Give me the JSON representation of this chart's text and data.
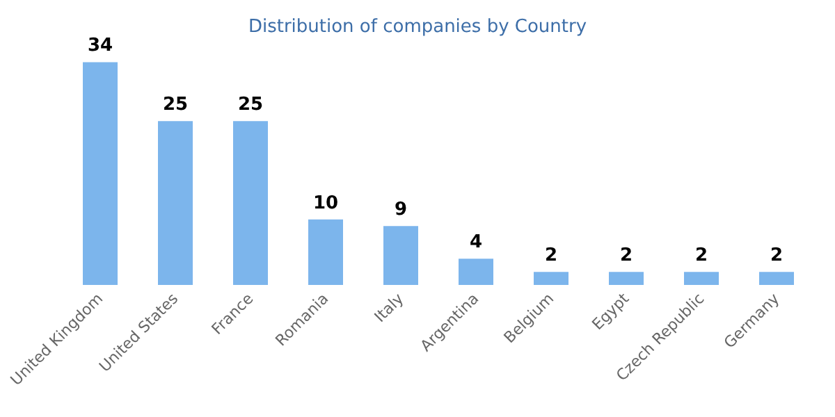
{
  "chart_data": {
    "type": "bar",
    "title": "Distribution of companies by Country",
    "categories": [
      "United Kingdom",
      "United States",
      "France",
      "Romania",
      "Italy",
      "Argentina",
      "Belgium",
      "Egypt",
      "Czech Republic",
      "Germany"
    ],
    "values": [
      34,
      25,
      25,
      10,
      9,
      4,
      2,
      2,
      2,
      2
    ],
    "color": "#7cb5ec",
    "data_labels": true,
    "tick_labels": "x"
  }
}
